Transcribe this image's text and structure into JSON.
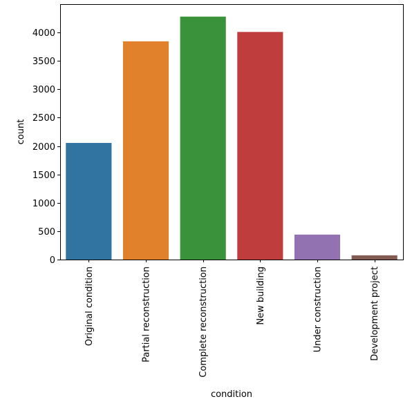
{
  "chart_data": {
    "type": "bar",
    "xlabel": "condition",
    "ylabel": "count",
    "categories": [
      "Original condition",
      "Partial reconstruction",
      "Complete reconstruction",
      "New building",
      "Under construction",
      "Development project"
    ],
    "values": [
      2055,
      3845,
      4280,
      4010,
      440,
      75
    ],
    "colors": [
      "#3274a1",
      "#e1812c",
      "#3a923a",
      "#c03d3e",
      "#9372b2",
      "#845b53"
    ],
    "ylim": [
      0,
      4500
    ],
    "yticks": [
      0,
      500,
      1000,
      1500,
      2000,
      2500,
      3000,
      3500,
      4000
    ],
    "grid": false,
    "legend": "none"
  }
}
